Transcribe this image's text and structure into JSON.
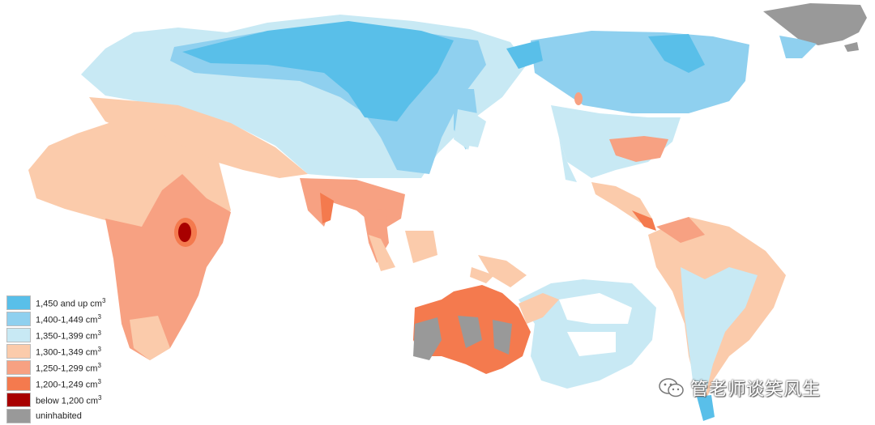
{
  "colors": {
    "c1450": "#59bfe9",
    "c1400": "#8fd0ef",
    "c1350": "#c8e9f4",
    "c1300": "#fbcbab",
    "c1250": "#f7a182",
    "c1200": "#f47a4e",
    "cbelow": "#a80000",
    "uninhabited": "#999999"
  },
  "legend": [
    {
      "label": "1,450 and up cm",
      "sup": "3",
      "color_key": "c1450"
    },
    {
      "label": "1,400-1,449 cm",
      "sup": "3",
      "color_key": "c1400"
    },
    {
      "label": "1,350-1,399 cm",
      "sup": "3",
      "color_key": "c1350"
    },
    {
      "label": "1,300-1,349 cm",
      "sup": "3",
      "color_key": "c1300"
    },
    {
      "label": "1,250-1,299 cm",
      "sup": "3",
      "color_key": "c1250"
    },
    {
      "label": "1,200-1,249 cm",
      "sup": "3",
      "color_key": "c1200"
    },
    {
      "label": "below 1,200 cm",
      "sup": "3",
      "color_key": "cbelow"
    },
    {
      "label": "uninhabited",
      "sup": "",
      "color_key": "uninhabited"
    }
  ],
  "watermark": {
    "text": "管老师谈笑风生",
    "icon": "wechat-icon"
  }
}
